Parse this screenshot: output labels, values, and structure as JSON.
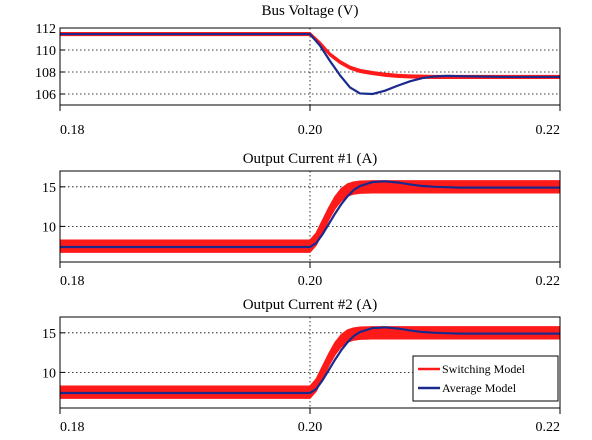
{
  "chart_data": [
    {
      "type": "line",
      "title": "Bus Voltage (V)",
      "xlim": [
        0.18,
        0.22
      ],
      "ylim": [
        105,
        112
      ],
      "xticks": [
        "0.18",
        "0.20",
        "0.22"
      ],
      "xtick_values": [
        0.18,
        0.2,
        0.22
      ],
      "yticks": [
        "112",
        "110",
        "108",
        "106"
      ],
      "ytick_values": [
        112,
        110,
        108,
        106
      ],
      "grid": true,
      "series": [
        {
          "name": "Switching Model",
          "color": "#ff1a1a",
          "x": [
            0.18,
            0.2,
            0.2008,
            0.2016,
            0.2024,
            0.2032,
            0.204,
            0.205,
            0.206,
            0.207,
            0.208,
            0.21,
            0.212,
            0.215,
            0.22
          ],
          "y": [
            111.45,
            111.45,
            110.6,
            109.6,
            108.9,
            108.4,
            108.1,
            107.9,
            107.75,
            107.65,
            107.6,
            107.55,
            107.55,
            107.55,
            107.55
          ],
          "band": 0.12
        },
        {
          "name": "Average Model",
          "color": "#1a2a8c",
          "x": [
            0.18,
            0.2,
            0.2008,
            0.2016,
            0.2024,
            0.2032,
            0.204,
            0.205,
            0.206,
            0.207,
            0.208,
            0.209,
            0.21,
            0.211,
            0.212,
            0.214,
            0.216,
            0.22
          ],
          "y": [
            111.45,
            111.45,
            110.4,
            109.0,
            107.7,
            106.6,
            106.05,
            106.0,
            106.3,
            106.75,
            107.15,
            107.45,
            107.6,
            107.65,
            107.62,
            107.58,
            107.55,
            107.55
          ]
        }
      ]
    },
    {
      "type": "line",
      "title": "Output Current #1 (A)",
      "xlim": [
        0.18,
        0.22
      ],
      "ylim": [
        5.5,
        17
      ],
      "xticks": [
        "0.18",
        "0.20",
        "0.22"
      ],
      "xtick_values": [
        0.18,
        0.2,
        0.22
      ],
      "yticks": [
        "15",
        "10"
      ],
      "ytick_values": [
        15,
        10
      ],
      "grid": true,
      "series": [
        {
          "name": "Switching Model",
          "color": "#ff1a1a",
          "x": [
            0.18,
            0.2,
            0.2005,
            0.201,
            0.2015,
            0.202,
            0.2025,
            0.203,
            0.2035,
            0.204,
            0.205,
            0.206,
            0.207,
            0.208,
            0.21,
            0.215,
            0.22
          ],
          "y": [
            7.5,
            7.5,
            8.4,
            10.0,
            11.6,
            13.0,
            14.0,
            14.6,
            14.85,
            14.95,
            15.0,
            15.0,
            15.0,
            15.0,
            15.0,
            15.0,
            15.0
          ],
          "band": 0.75
        },
        {
          "name": "Average Model",
          "color": "#1a2a8c",
          "x": [
            0.18,
            0.2,
            0.2005,
            0.201,
            0.2015,
            0.202,
            0.2025,
            0.203,
            0.2035,
            0.204,
            0.205,
            0.206,
            0.207,
            0.208,
            0.209,
            0.21,
            0.212,
            0.215,
            0.22
          ],
          "y": [
            7.4,
            7.4,
            7.9,
            9.0,
            10.3,
            11.6,
            12.8,
            13.8,
            14.6,
            15.1,
            15.6,
            15.7,
            15.55,
            15.3,
            15.1,
            15.0,
            14.9,
            14.9,
            14.9
          ]
        }
      ]
    },
    {
      "type": "line",
      "title": "Output Current #2 (A)",
      "xlim": [
        0.18,
        0.22
      ],
      "ylim": [
        5.5,
        17
      ],
      "xticks": [
        "0.18",
        "0.20",
        "0.22"
      ],
      "xtick_values": [
        0.18,
        0.2,
        0.22
      ],
      "yticks": [
        "15",
        "10"
      ],
      "ytick_values": [
        15,
        10
      ],
      "grid": true,
      "legend": {
        "position": "bottom-right",
        "entries": [
          {
            "label": "Switching Model",
            "color": "#ff1a1a"
          },
          {
            "label": "Average Model",
            "color": "#1a2a8c"
          }
        ]
      },
      "series": [
        {
          "name": "Switching Model",
          "color": "#ff1a1a",
          "x": [
            0.18,
            0.2,
            0.2005,
            0.201,
            0.2015,
            0.202,
            0.2025,
            0.203,
            0.2035,
            0.204,
            0.205,
            0.206,
            0.207,
            0.208,
            0.21,
            0.215,
            0.22
          ],
          "y": [
            7.5,
            7.5,
            8.4,
            10.0,
            11.6,
            13.0,
            14.0,
            14.6,
            14.85,
            14.95,
            15.0,
            15.0,
            15.0,
            15.0,
            15.0,
            15.0,
            15.0
          ],
          "band": 0.75
        },
        {
          "name": "Average Model",
          "color": "#1a2a8c",
          "x": [
            0.18,
            0.2,
            0.2005,
            0.201,
            0.2015,
            0.202,
            0.2025,
            0.203,
            0.2035,
            0.204,
            0.205,
            0.206,
            0.207,
            0.208,
            0.209,
            0.21,
            0.212,
            0.215,
            0.22
          ],
          "y": [
            7.4,
            7.4,
            7.9,
            9.0,
            10.3,
            11.6,
            12.8,
            13.8,
            14.6,
            15.1,
            15.6,
            15.7,
            15.55,
            15.3,
            15.1,
            15.0,
            14.9,
            14.9,
            14.9
          ]
        }
      ]
    }
  ]
}
